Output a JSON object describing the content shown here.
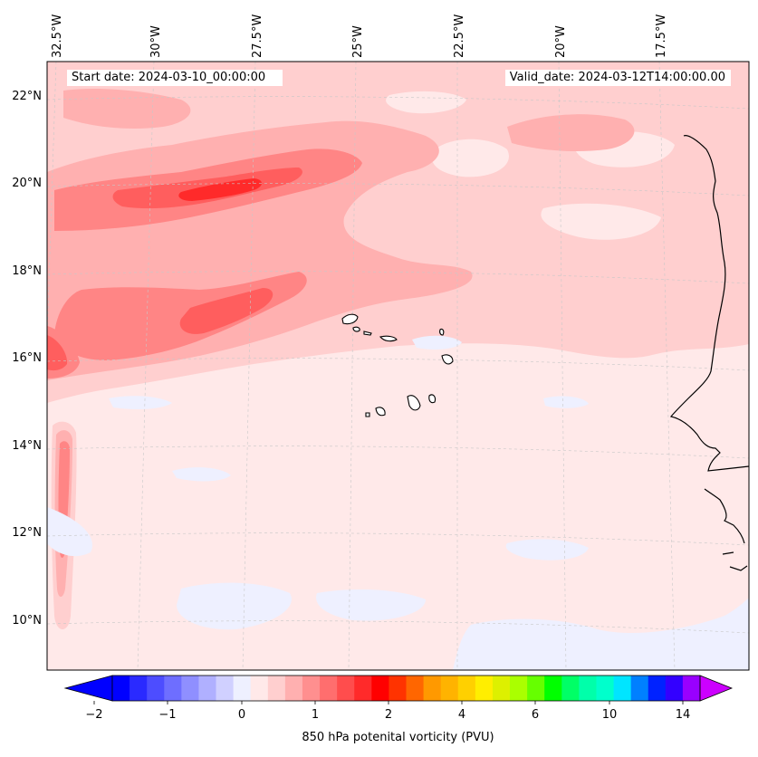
{
  "header": {
    "start_date": "Start date: 2024-03-10_00:00:00",
    "valid_date": "Valid_date: 2024-03-12T14:00:00.00"
  },
  "map": {
    "lon_labels": [
      "32.5°W",
      "30°W",
      "27.5°W",
      "25°W",
      "22.5°W",
      "20°W",
      "17.5°W"
    ],
    "lat_labels": [
      "22°N",
      "20°N",
      "18°N",
      "16°N",
      "14°N",
      "12°N",
      "10°N"
    ],
    "field": "850 hPa potential vorticity",
    "colors": {
      "background": "#ffe9e9",
      "light": "#ffcfcf",
      "medium": "#ffb0b0",
      "strong": "#ff8585",
      "stronger": "#ff5e5e",
      "max": "#ff2a2a",
      "negative": "#eef0ff",
      "coast": "#000000"
    }
  },
  "colorbar": {
    "tick_labels": [
      "−2",
      "−1",
      "0",
      "1",
      "2",
      "4",
      "6",
      "10",
      "14"
    ],
    "title": "850 hPa potenital vorticity (PVU)",
    "colors": [
      "#0000ff",
      "#2a2aff",
      "#4d4dff",
      "#6e6eff",
      "#8f8fff",
      "#b0b0ff",
      "#d0d0ff",
      "#eef0ff",
      "#ffe9e9",
      "#ffcfcf",
      "#ffb0b0",
      "#ff8f8f",
      "#ff6e6e",
      "#ff4d4d",
      "#ff2a2a",
      "#ff0000",
      "#ff3300",
      "#ff6600",
      "#ff9900",
      "#ffb300",
      "#ffd000",
      "#ffee00",
      "#ddf000",
      "#aaff00",
      "#66ff00",
      "#00ff00",
      "#00ff66",
      "#00ffaa",
      "#00ffcc",
      "#00e5ff",
      "#0080ff",
      "#0022ff",
      "#3300ff",
      "#9900ff"
    ],
    "end_colors": {
      "low": "#0000ff",
      "high": "#cc00ff"
    }
  }
}
